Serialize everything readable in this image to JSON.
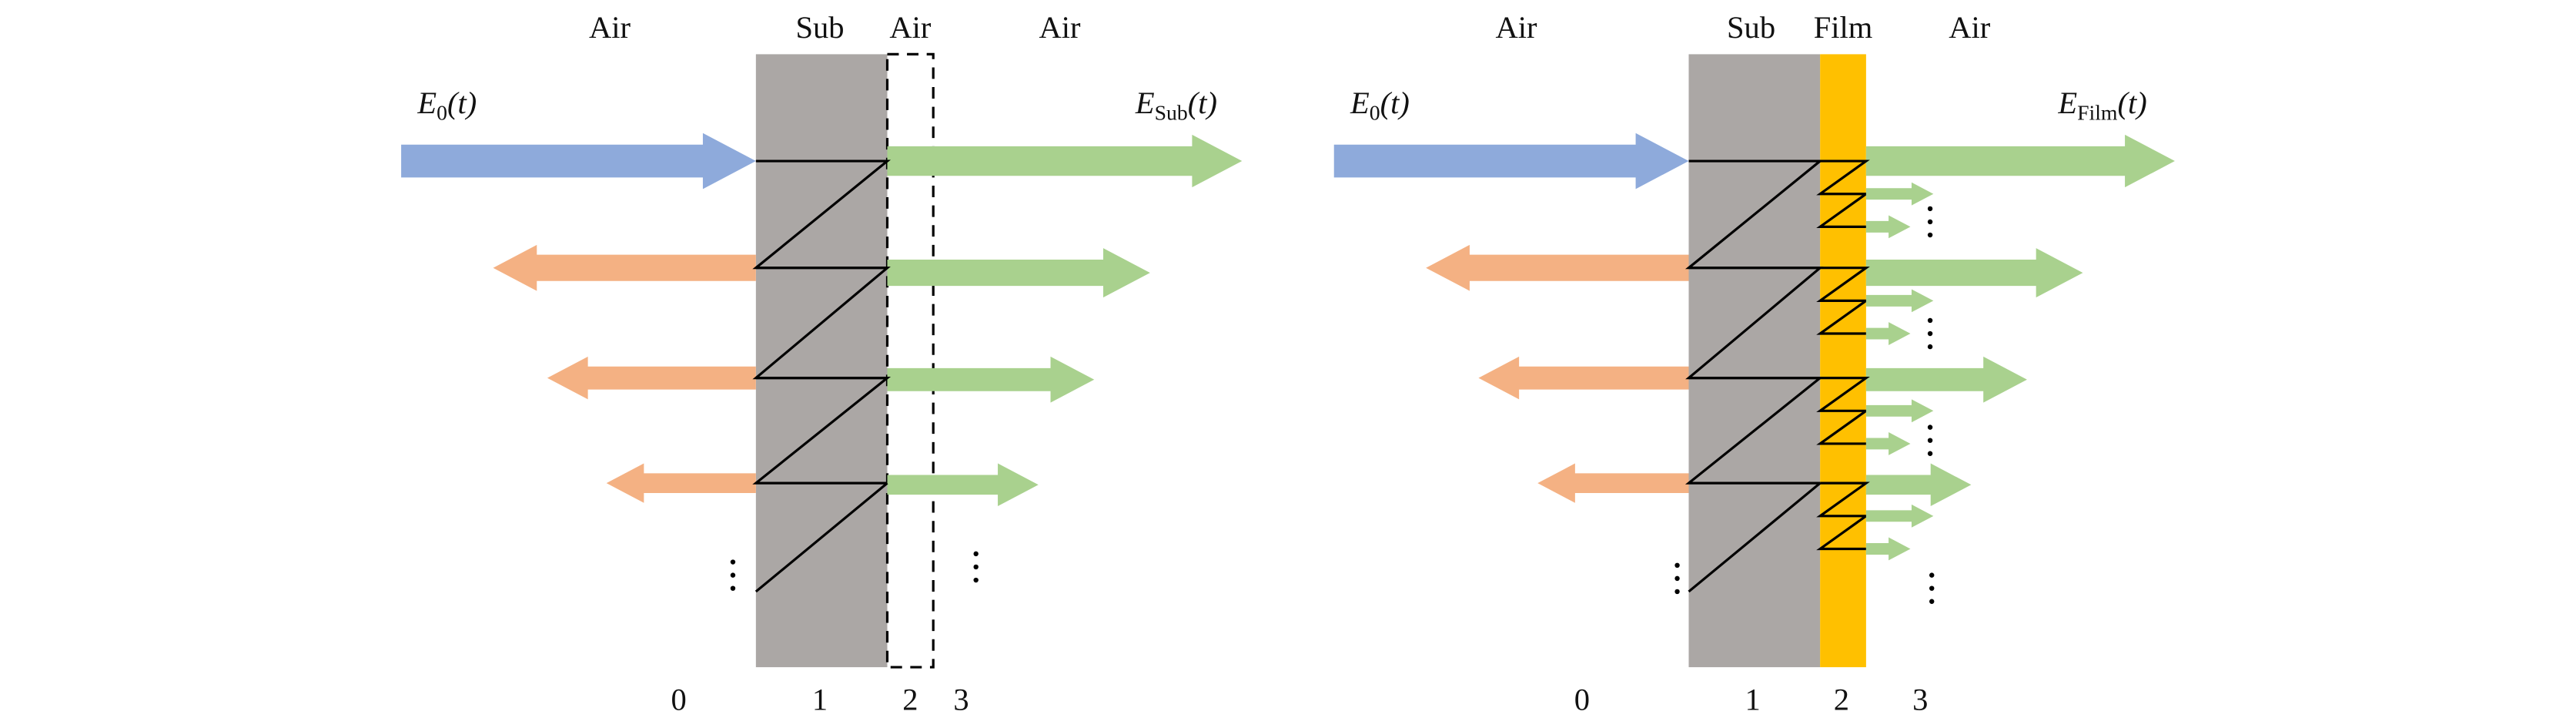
{
  "panels": [
    {
      "regions": [
        "Air",
        "Sub",
        "Air",
        "Air"
      ],
      "input": {
        "base": "E",
        "sub": "0",
        "arg": "(t)"
      },
      "output": {
        "base": "E",
        "sub": "Sub",
        "arg": "(t)"
      },
      "indices": [
        "0",
        "1",
        "2",
        "3"
      ]
    },
    {
      "regions": [
        "Air",
        "Sub",
        "Film",
        "Air"
      ],
      "input": {
        "base": "E",
        "sub": "0",
        "arg": "(t)"
      },
      "output": {
        "base": "E",
        "sub": "Film",
        "arg": "(t)"
      },
      "indices": [
        "0",
        "1",
        "2",
        "3"
      ]
    }
  ]
}
